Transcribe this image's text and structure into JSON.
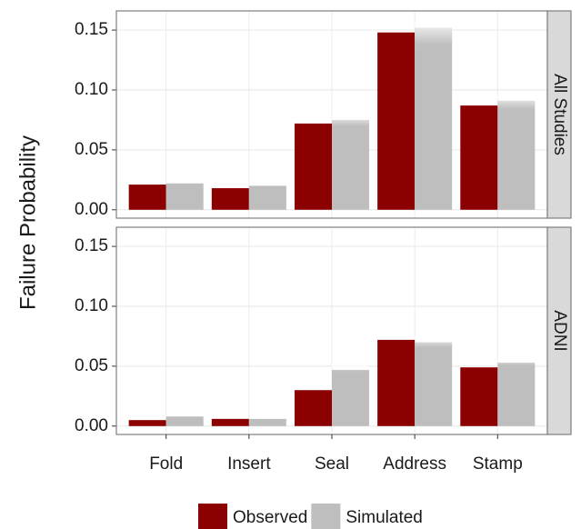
{
  "y_label": "Failure Probability",
  "chart_data": [
    {
      "type": "bar",
      "title": "All Studies",
      "categories": [
        "Fold",
        "Insert",
        "Seal",
        "Address",
        "Stamp"
      ],
      "series": [
        {
          "name": "Observed",
          "color": "#8b0000",
          "values": [
            0.021,
            0.018,
            0.072,
            0.148,
            0.087
          ]
        },
        {
          "name": "Simulated",
          "color": "#bebebe",
          "values": [
            0.022,
            0.02,
            0.075,
            0.152,
            0.091
          ]
        }
      ],
      "ylim": [
        -0.007,
        0.166
      ],
      "yticks": [
        {
          "value": 0,
          "label": "0.00"
        },
        {
          "value": 0.05,
          "label": "0.05"
        },
        {
          "value": 0.1,
          "label": "0.10"
        },
        {
          "value": 0.15,
          "label": "0.15"
        }
      ],
      "grid": true
    },
    {
      "type": "bar",
      "title": "ADNI",
      "categories": [
        "Fold",
        "Insert",
        "Seal",
        "Address",
        "Stamp"
      ],
      "series": [
        {
          "name": "Observed",
          "color": "#8b0000",
          "values": [
            0.005,
            0.006,
            0.03,
            0.072,
            0.049
          ]
        },
        {
          "name": "Simulated",
          "color": "#bebebe",
          "values": [
            0.008,
            0.006,
            0.047,
            0.07,
            0.053
          ]
        }
      ],
      "ylim": [
        -0.007,
        0.166
      ],
      "yticks": [
        {
          "value": 0,
          "label": "0.00"
        },
        {
          "value": 0.05,
          "label": "0.05"
        },
        {
          "value": 0.1,
          "label": "0.10"
        },
        {
          "value": 0.15,
          "label": "0.15"
        }
      ],
      "grid": true
    }
  ]
}
